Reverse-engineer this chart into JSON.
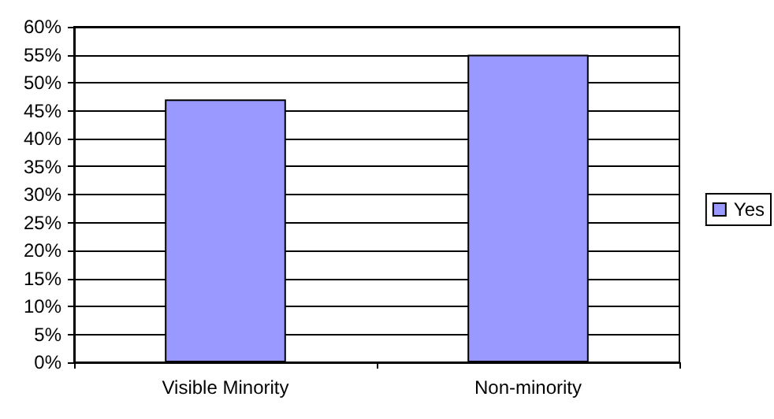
{
  "chart_data": {
    "type": "bar",
    "categories": [
      "Visible Minority",
      "Non-minority"
    ],
    "series": [
      {
        "name": "Yes",
        "color": "#9999ff",
        "values": [
          47,
          55
        ]
      }
    ],
    "ylim": [
      0,
      60
    ],
    "yticks": [
      {
        "value": 0,
        "label": "0%"
      },
      {
        "value": 5,
        "label": "5%"
      },
      {
        "value": 10,
        "label": "10%"
      },
      {
        "value": 15,
        "label": "15%"
      },
      {
        "value": 20,
        "label": "20%"
      },
      {
        "value": 25,
        "label": "25%"
      },
      {
        "value": 30,
        "label": "30%"
      },
      {
        "value": 35,
        "label": "35%"
      },
      {
        "value": 40,
        "label": "40%"
      },
      {
        "value": 45,
        "label": "45%"
      },
      {
        "value": 50,
        "label": "50%"
      },
      {
        "value": 55,
        "label": "55%"
      },
      {
        "value": 60,
        "label": "60%"
      }
    ],
    "grid": "y",
    "legend": "right"
  }
}
